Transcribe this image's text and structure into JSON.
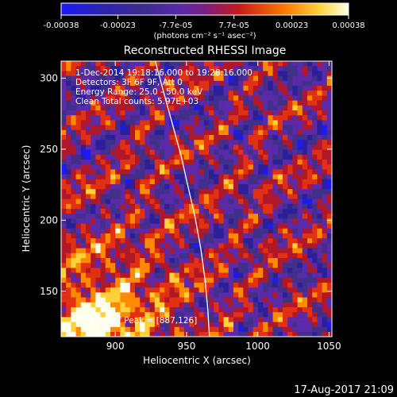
{
  "chart_data": {
    "type": "heatmap",
    "title": "Reconstructed RHESSI Image",
    "xlabel": "Heliocentric X (arcsec)",
    "ylabel": "Heliocentric Y (arcsec)",
    "xlim": [
      862,
      1052
    ],
    "ylim": [
      118,
      312
    ],
    "x_ticks": [
      900,
      950,
      1000,
      1050
    ],
    "y_ticks": [
      150,
      200,
      250,
      300
    ],
    "colorbar": {
      "range": [
        -0.00038,
        0.00038
      ],
      "tick_values": [
        -0.00038,
        -0.00023,
        -7.7e-05,
        7.7e-05,
        0.00023,
        0.00038
      ],
      "tick_labels": [
        "-0.00038",
        "-0.00023",
        "-7.7e-05",
        "7.7e-05",
        "0.00023",
        "0.00038"
      ],
      "units_label": "(photons cm⁻² s⁻¹ asec⁻²)"
    },
    "annotations": [
      " 1-Dec-2014 19:18:16.000 to 19:28:16.000",
      "Detectors: 3F 6F 9F, Att 0",
      "Energy Range: 25.0 - 50.0 keV",
      "Clean     Total counts: 5.97E+03"
    ],
    "peak_label": "Location of Peak = [887,126]",
    "peak_location": [
      887,
      126
    ],
    "limb_curve": {
      "x": [
        928,
        934,
        940,
        946,
        951,
        956,
        960,
        963,
        965,
        966
      ],
      "y": [
        312,
        290,
        268,
        246,
        224,
        202,
        180,
        158,
        136,
        118
      ]
    },
    "colors": {
      "background": "#000000",
      "colormap": [
        "#1a1aff",
        "#2c1f9a",
        "#40308a",
        "#5a2aa8",
        "#b0182a",
        "#e23012",
        "#ff8a00",
        "#ffd23a",
        "#ffffee"
      ]
    }
  },
  "footer": {
    "timestamp": "17-Aug-2017 21:09"
  }
}
